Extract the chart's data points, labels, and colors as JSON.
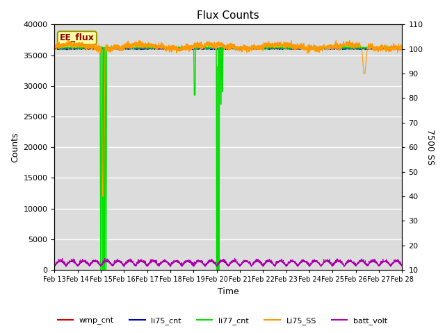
{
  "title": "Flux Counts",
  "xlabel": "Time",
  "ylabel_left": "Counts",
  "ylabel_right": "7500 SS",
  "xlim_days": [
    0,
    15
  ],
  "ylim_left": [
    0,
    40000
  ],
  "ylim_right": [
    10,
    110
  ],
  "x_tick_positions": [
    0,
    1,
    2,
    3,
    4,
    5,
    6,
    7,
    8,
    9,
    10,
    11,
    12,
    13,
    14,
    15
  ],
  "x_tick_labels": [
    "Feb 13",
    "Feb 14",
    "Feb 15",
    "Feb 16",
    "Feb 17",
    "Feb 18",
    "Feb 19",
    "Feb 20",
    "Feb 21",
    "Feb 22",
    "Feb 23",
    "Feb 24",
    "Feb 25",
    "Feb 26",
    "Feb 27",
    "Feb 28"
  ],
  "yticks_left": [
    0,
    5000,
    10000,
    15000,
    20000,
    25000,
    30000,
    35000,
    40000
  ],
  "yticks_right": [
    10,
    20,
    30,
    40,
    50,
    60,
    70,
    80,
    90,
    100,
    110
  ],
  "annotation_text": "EE_flux",
  "bg_color": "#dcdcdc",
  "grid_color": "#ffffff",
  "colors": {
    "wmp_cnt": "#cc0000",
    "li75_cnt": "#0000bb",
    "li77_cnt": "#00dd00",
    "Li75_SS": "#ff9900",
    "batt_volt": "#aa00aa"
  },
  "figsize": [
    6.4,
    4.8
  ],
  "dpi": 100
}
